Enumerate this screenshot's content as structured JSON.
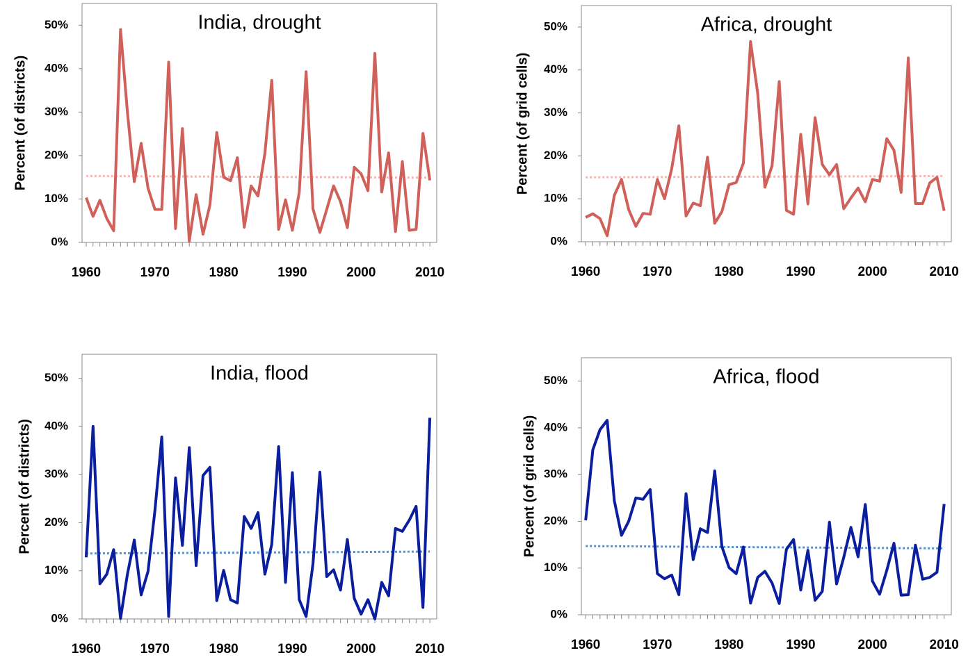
{
  "chart_data": [
    {
      "type": "line",
      "title": "India, drought",
      "ylabel": "Percent (of districts)",
      "x": [
        1960,
        1961,
        1962,
        1963,
        1964,
        1965,
        1966,
        1967,
        1968,
        1969,
        1970,
        1971,
        1972,
        1973,
        1974,
        1975,
        1976,
        1977,
        1978,
        1979,
        1980,
        1981,
        1982,
        1983,
        1984,
        1985,
        1986,
        1987,
        1988,
        1989,
        1990,
        1991,
        1992,
        1993,
        1994,
        1995,
        1996,
        1997,
        1998,
        1999,
        2000,
        2001,
        2002,
        2003,
        2004,
        2005,
        2006,
        2007,
        2008,
        2009,
        2010
      ],
      "values": [
        10.3,
        6,
        9.7,
        5.5,
        2.7,
        49,
        30,
        14,
        22.8,
        12.5,
        7.6,
        7.6,
        41.5,
        3.2,
        26.2,
        0.3,
        11,
        1.9,
        8.6,
        25.3,
        15,
        14.2,
        19.5,
        3.5,
        13,
        10.7,
        20.5,
        37.3,
        3,
        9.8,
        2.8,
        11.5,
        39.3,
        7.7,
        2.3,
        7.6,
        13,
        9.4,
        3.4,
        17.3,
        15.8,
        11.9,
        43.5,
        11.6,
        20.6,
        2.5,
        18.6,
        2.8,
        3,
        25.1,
        14.3
      ],
      "color": "#d0605a",
      "trend": {
        "values": [
          15.3,
          14.9
        ],
        "color": "#f0b8b6"
      },
      "xlim": [
        1959.4,
        2011
      ],
      "xticks": [
        1960,
        1970,
        1980,
        1990,
        2000,
        2010
      ],
      "ylim": [
        0,
        55
      ],
      "yticks": [
        {
          "value": 0,
          "label": "0%"
        },
        {
          "value": 10,
          "label": "10%"
        },
        {
          "value": 20,
          "label": "20%"
        },
        {
          "value": 30,
          "label": "30%"
        },
        {
          "value": 40,
          "label": "40%"
        },
        {
          "value": 50,
          "label": "50%"
        }
      ]
    },
    {
      "type": "line",
      "title": "Africa, drought",
      "ylabel": "Percent (of grid cells)",
      "x": [
        1960,
        1961,
        1962,
        1963,
        1964,
        1965,
        1966,
        1967,
        1968,
        1969,
        1970,
        1971,
        1972,
        1973,
        1974,
        1975,
        1976,
        1977,
        1978,
        1979,
        1980,
        1981,
        1982,
        1983,
        1984,
        1985,
        1986,
        1987,
        1988,
        1989,
        1990,
        1991,
        1992,
        1993,
        1994,
        1995,
        1996,
        1997,
        1998,
        1999,
        2000,
        2001,
        2002,
        2003,
        2004,
        2005,
        2006,
        2007,
        2008,
        2009,
        2010
      ],
      "values": [
        5.7,
        6.5,
        5.4,
        1.4,
        10.8,
        14.5,
        7.5,
        3.6,
        6.6,
        6.4,
        14.5,
        10,
        17,
        27,
        6,
        9,
        8.4,
        19.7,
        4.3,
        7,
        13.3,
        13.8,
        18.3,
        46.6,
        34.5,
        12.7,
        17.7,
        37.3,
        7.3,
        6.4,
        25,
        8.8,
        28.9,
        18,
        15.6,
        18,
        7.7,
        10.2,
        12.5,
        9.3,
        14.5,
        14.1,
        24,
        21.3,
        11.5,
        42.8,
        8.9,
        8.9,
        13.7,
        15,
        7.2
      ],
      "color": "#d0605a",
      "trend": {
        "values": [
          15.0,
          15.3
        ],
        "color": "#f0b8b6"
      },
      "xlim": [
        1959.4,
        2011
      ],
      "xticks": [
        1960,
        1970,
        1980,
        1990,
        2000,
        2010
      ],
      "ylim": [
        0,
        55
      ],
      "yticks": [
        {
          "value": 0,
          "label": "0%"
        },
        {
          "value": 10,
          "label": "10%"
        },
        {
          "value": 20,
          "label": "20%"
        },
        {
          "value": 30,
          "label": "30%"
        },
        {
          "value": 40,
          "label": "40%"
        },
        {
          "value": 50,
          "label": "50%"
        }
      ]
    },
    {
      "type": "line",
      "title": "India, flood",
      "ylabel": "Percent (of districts)",
      "x": [
        1960,
        1961,
        1962,
        1963,
        1964,
        1965,
        1966,
        1967,
        1968,
        1969,
        1970,
        1971,
        1972,
        1973,
        1974,
        1975,
        1976,
        1977,
        1978,
        1979,
        1980,
        1981,
        1982,
        1983,
        1984,
        1985,
        1986,
        1987,
        1988,
        1989,
        1990,
        1991,
        1992,
        1993,
        1994,
        1995,
        1996,
        1997,
        1998,
        1999,
        2000,
        2001,
        2002,
        2003,
        2004,
        2005,
        2006,
        2007,
        2008,
        2009,
        2010
      ],
      "values": [
        12.8,
        40,
        7.3,
        9.3,
        14.4,
        0.1,
        9.3,
        16.4,
        5,
        9.9,
        22.5,
        37.8,
        0.5,
        29.3,
        15.3,
        35.6,
        11.1,
        29.8,
        31.5,
        3.8,
        10.1,
        4,
        3.3,
        21.3,
        18.8,
        22.1,
        9.3,
        15.5,
        35.8,
        7.6,
        30.4,
        4,
        0.5,
        11.5,
        30.5,
        8.8,
        10.2,
        6,
        16.5,
        4.3,
        1,
        4,
        0,
        7.6,
        4.8,
        18.8,
        18.2,
        20.5,
        23.4,
        2.4,
        41.8
      ],
      "color": "#0a1e9e",
      "trend": {
        "values": [
          13.6,
          14.0
        ],
        "color": "#5b8fc9"
      },
      "xlim": [
        1959.4,
        2011
      ],
      "xticks": [
        1960,
        1970,
        1980,
        1990,
        2000,
        2010
      ],
      "ylim": [
        0,
        55
      ],
      "yticks": [
        {
          "value": 0,
          "label": "0%"
        },
        {
          "value": 10,
          "label": "10%"
        },
        {
          "value": 20,
          "label": "20%"
        },
        {
          "value": 30,
          "label": "30%"
        },
        {
          "value": 40,
          "label": "40%"
        },
        {
          "value": 50,
          "label": "50%"
        }
      ]
    },
    {
      "type": "line",
      "title": "Africa, flood",
      "ylabel": "Percent (of grid cells)",
      "x": [
        1960,
        1961,
        1962,
        1963,
        1964,
        1965,
        1966,
        1967,
        1968,
        1969,
        1970,
        1971,
        1972,
        1973,
        1974,
        1975,
        1976,
        1977,
        1978,
        1979,
        1980,
        1981,
        1982,
        1983,
        1984,
        1985,
        1986,
        1987,
        1988,
        1989,
        1990,
        1991,
        1992,
        1993,
        1994,
        1995,
        1996,
        1997,
        1998,
        1999,
        2000,
        2001,
        2002,
        2003,
        2004,
        2005,
        2006,
        2007,
        2008,
        2009,
        2010
      ],
      "values": [
        20.2,
        35.3,
        39.6,
        41.6,
        24.4,
        17,
        20,
        25,
        24.7,
        26.8,
        8.8,
        7.7,
        8.5,
        4.3,
        25.9,
        11.8,
        18.4,
        17.6,
        30.8,
        14.6,
        10.1,
        8.8,
        14.5,
        2.5,
        8,
        9.3,
        6.8,
        2.4,
        14,
        16.1,
        5.3,
        13.8,
        3.1,
        5,
        19.8,
        6.6,
        12.3,
        18.7,
        12.4,
        23.6,
        7.2,
        4.4,
        9.5,
        15.3,
        4.2,
        4.3,
        14.9,
        7.6,
        8,
        9.1,
        23.7
      ],
      "color": "#0a1e9e",
      "trend": {
        "values": [
          14.7,
          14.2
        ],
        "color": "#5b8fc9"
      },
      "xlim": [
        1959.4,
        2011
      ],
      "xticks": [
        1960,
        1970,
        1980,
        1990,
        2000,
        2010
      ],
      "ylim": [
        0,
        55
      ],
      "yticks": [
        {
          "value": 0,
          "label": "0%"
        },
        {
          "value": 10,
          "label": "10%"
        },
        {
          "value": 20,
          "label": "20%"
        },
        {
          "value": 30,
          "label": "30%"
        },
        {
          "value": 40,
          "label": "40%"
        },
        {
          "value": 50,
          "label": "50%"
        }
      ]
    }
  ]
}
